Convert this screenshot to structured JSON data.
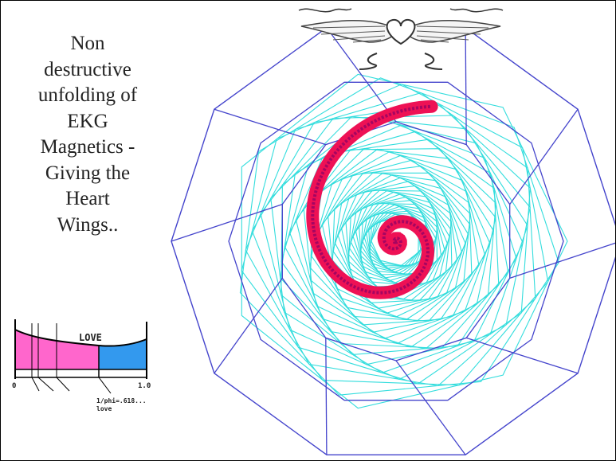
{
  "caption": {
    "lines": [
      "Non",
      "destructive",
      "unfolding of",
      "EKG",
      "Magnetics -",
      "Giving the",
      "Heart",
      "Wings.."
    ]
  },
  "mini_chart": {
    "center_label": "LOVE",
    "axis_start": "0",
    "axis_end": "1.0",
    "annotation_line1": "1/phi=.618...",
    "annotation_line2": "love",
    "colors": {
      "left_fill": "#ff66cc",
      "right_fill": "#3399ee",
      "curve": "#000000"
    }
  },
  "diagram": {
    "colors": {
      "polygon": "#4444cc",
      "cyan_web": "#33dddd",
      "spiral_outer": "#ee1155",
      "spiral_inner": "#880066",
      "wing": "#444444"
    },
    "icons": [
      "winged-heart-icon"
    ]
  }
}
